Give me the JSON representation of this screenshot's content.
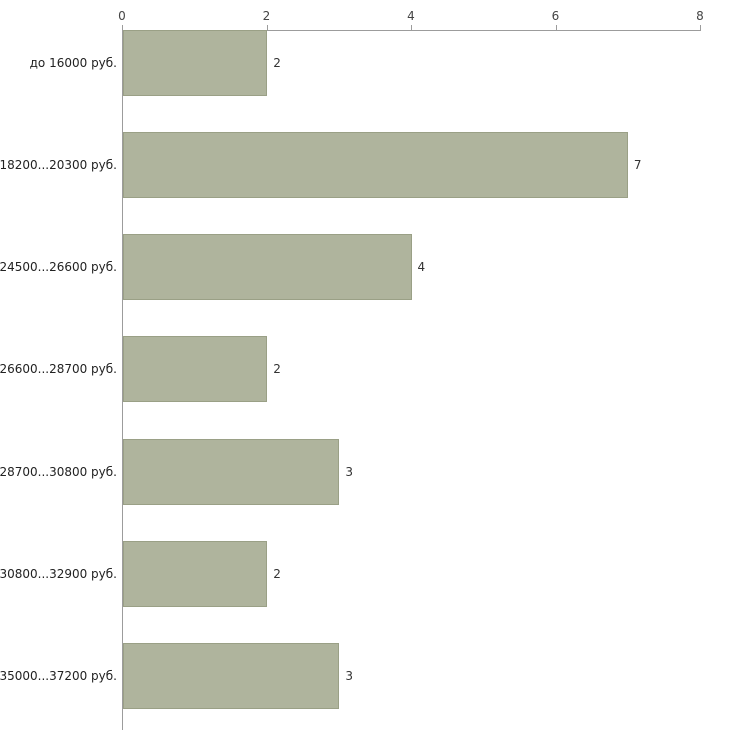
{
  "chart_data": {
    "type": "bar",
    "orientation": "horizontal",
    "title": "",
    "xlabel": "",
    "ylabel": "",
    "categories": [
      "до 16000 руб.",
      "18200...20300 руб.",
      "24500...26600 руб.",
      "26600...28700 руб.",
      "28700...30800 руб.",
      "30800...32900 руб.",
      "35000...37200 руб."
    ],
    "values": [
      2,
      7,
      4,
      2,
      3,
      2,
      3
    ],
    "xlim": [
      0,
      8
    ],
    "x_ticks": [
      0,
      2,
      4,
      6,
      8
    ],
    "grid": false,
    "legend": false,
    "value_labels": true,
    "bar_color": "#afb49d",
    "bar_border_color": "#9aa086",
    "axis_color": "#9c9c9c",
    "text_color": "#333333"
  }
}
